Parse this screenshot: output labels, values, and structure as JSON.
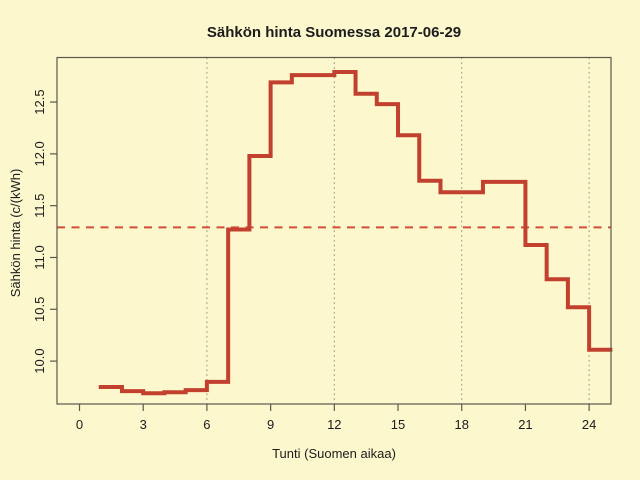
{
  "figure": {
    "title": "Sähkön hinta Suomessa 2017-06-29",
    "xlabel": "Tunti (Suomen aikaa)",
    "ylabel": "Sähkön hinta (c/(kWh)"
  },
  "chart_data": {
    "type": "line",
    "subtype": "step",
    "title": "Sähkön hinta Suomessa 2017-06-29",
    "xlabel": "Tunti (Suomen aikaa)",
    "ylabel": "Sähkön hinta (c/(kWh)",
    "x": [
      1,
      2,
      3,
      4,
      5,
      6,
      7,
      8,
      9,
      10,
      11,
      12,
      13,
      14,
      15,
      16,
      17,
      18,
      19,
      20,
      21,
      22,
      23,
      24
    ],
    "values": [
      9.75,
      9.71,
      9.69,
      9.7,
      9.72,
      9.8,
      11.27,
      11.98,
      12.69,
      12.76,
      12.76,
      12.79,
      12.58,
      12.48,
      12.18,
      11.74,
      11.63,
      11.63,
      11.73,
      11.73,
      11.12,
      10.79,
      10.52,
      10.11
    ],
    "x_end": 25,
    "mean_line_value": 11.29,
    "x_ticks": [
      0,
      3,
      6,
      9,
      12,
      15,
      18,
      21,
      24
    ],
    "x_tick_labels": [
      "0",
      "3",
      "6",
      "9",
      "12",
      "15",
      "18",
      "21",
      "24"
    ],
    "y_tick_values": [
      10.0,
      10.5,
      11.0,
      11.5,
      12.0,
      12.5
    ],
    "y_tick_labels": [
      "10.0",
      "10.5",
      "11.0",
      "11.5",
      "12.0",
      "12.5"
    ],
    "gridlines_x": [
      6,
      12,
      18,
      24
    ],
    "xlim": [
      -1.06,
      25.03
    ],
    "ylim": [
      9.586,
      12.93
    ],
    "grid": "vertical-dotted",
    "legend": "none",
    "colors": {
      "background": "#FCF7CD",
      "step_line": "#C2412E",
      "mean_line": "#D14E3A",
      "axis_box": "#5B584E",
      "gridline": "#95907A",
      "text": "#1c1c1c"
    }
  }
}
